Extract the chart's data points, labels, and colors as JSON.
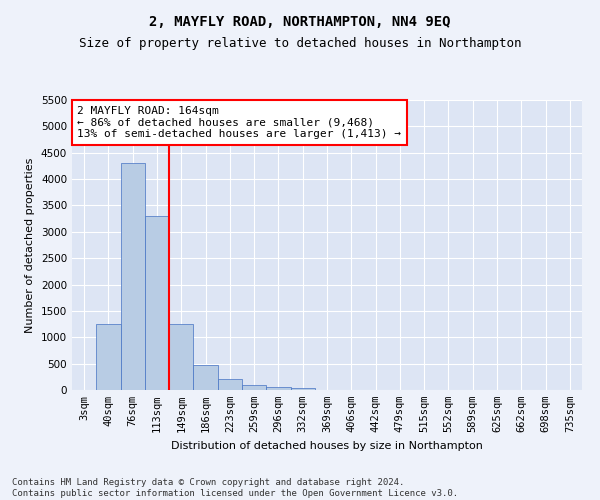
{
  "title": "2, MAYFLY ROAD, NORTHAMPTON, NN4 9EQ",
  "subtitle": "Size of property relative to detached houses in Northampton",
  "xlabel": "Distribution of detached houses by size in Northampton",
  "ylabel": "Number of detached properties",
  "bin_labels": [
    "3sqm",
    "40sqm",
    "76sqm",
    "113sqm",
    "149sqm",
    "186sqm",
    "223sqm",
    "259sqm",
    "296sqm",
    "332sqm",
    "369sqm",
    "406sqm",
    "442sqm",
    "479sqm",
    "515sqm",
    "552sqm",
    "589sqm",
    "625sqm",
    "662sqm",
    "698sqm",
    "735sqm"
  ],
  "bar_heights": [
    0,
    1250,
    4300,
    3300,
    1250,
    480,
    210,
    90,
    60,
    30,
    0,
    0,
    0,
    0,
    0,
    0,
    0,
    0,
    0,
    0,
    0
  ],
  "bar_color": "#b8cce4",
  "bar_edge_color": "#4472c4",
  "vline_x_index": 4,
  "vline_color": "red",
  "annotation_text": "2 MAYFLY ROAD: 164sqm\n← 86% of detached houses are smaller (9,468)\n13% of semi-detached houses are larger (1,413) →",
  "annotation_box_color": "white",
  "annotation_box_edge": "red",
  "ylim": [
    0,
    5500
  ],
  "yticks": [
    0,
    500,
    1000,
    1500,
    2000,
    2500,
    3000,
    3500,
    4000,
    4500,
    5000,
    5500
  ],
  "footnote": "Contains HM Land Registry data © Crown copyright and database right 2024.\nContains public sector information licensed under the Open Government Licence v3.0.",
  "bg_color": "#eef2fa",
  "plot_bg_color": "#dde5f4",
  "grid_color": "white",
  "title_fontsize": 10,
  "subtitle_fontsize": 9,
  "axis_label_fontsize": 8,
  "tick_fontsize": 7.5,
  "annotation_fontsize": 8,
  "footnote_fontsize": 6.5
}
